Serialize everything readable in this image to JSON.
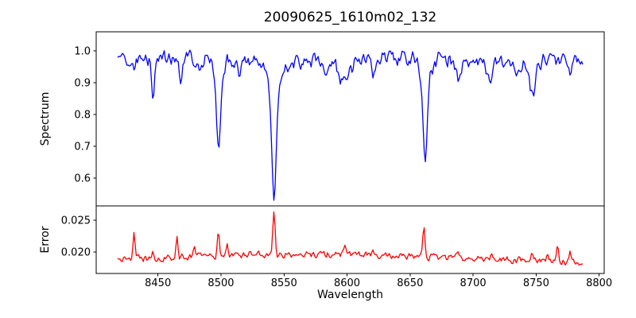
{
  "chart_data": {
    "type": "line",
    "title": "20090625_1610m02_132",
    "xlabel": "Wavelength",
    "x_range": [
      8401,
      8804
    ],
    "x_ticks": [
      8450,
      8500,
      8550,
      8600,
      8650,
      8700,
      8750,
      8800
    ],
    "x_tick_labels": [
      "8450",
      "8500",
      "8550",
      "8600",
      "8650",
      "8700",
      "8750",
      "8800"
    ],
    "data_x_start": 8418,
    "data_x_end": 8787,
    "n_points": 400,
    "noise_seed": 20090625,
    "grid": false,
    "legend": "none",
    "panels": [
      {
        "name": "spectrum",
        "ylabel": "Spectrum",
        "color": "#0000ff",
        "y_range": [
          0.5125,
          1.06
        ],
        "y_ticks": [
          1.0,
          0.9,
          0.8,
          0.7,
          0.6
        ],
        "y_tick_labels": [
          "1.0",
          "0.9",
          "0.8",
          "0.7",
          "0.6"
        ],
        "continuum": 0.972,
        "continuum_wave_amp": 0.005,
        "continuum_wave_period": 30,
        "noise_sigma": 0.016,
        "absorption_features": [
          {
            "center": 8431,
            "depth": 0.05,
            "sigma": 1.0
          },
          {
            "center": 8446,
            "depth": 0.115,
            "sigma": 1.1
          },
          {
            "center": 8468,
            "depth": 0.06,
            "sigma": 1.3
          },
          {
            "center": 8484,
            "depth": 0.04,
            "sigma": 1.2
          },
          {
            "center": 8498,
            "depth": 0.24,
            "sigma": 1.5
          },
          {
            "center": 8498,
            "depth": 0.04,
            "sigma": 4.0
          },
          {
            "center": 8514,
            "depth": 0.04,
            "sigma": 1.5
          },
          {
            "center": 8542,
            "depth": 0.38,
            "sigma": 1.8
          },
          {
            "center": 8542,
            "depth": 0.06,
            "sigma": 6.0
          },
          {
            "center": 8582,
            "depth": 0.05,
            "sigma": 1.5
          },
          {
            "center": 8598,
            "depth": 0.065,
            "sigma": 5.0
          },
          {
            "center": 8621,
            "depth": 0.04,
            "sigma": 1.5
          },
          {
            "center": 8648,
            "depth": 0.03,
            "sigma": 1.2
          },
          {
            "center": 8662,
            "depth": 0.29,
            "sigma": 1.7
          },
          {
            "center": 8662,
            "depth": 0.05,
            "sigma": 5.0
          },
          {
            "center": 8688,
            "depth": 0.06,
            "sigma": 1.8
          },
          {
            "center": 8713,
            "depth": 0.05,
            "sigma": 2.0
          },
          {
            "center": 8736,
            "depth": 0.04,
            "sigma": 2.0
          },
          {
            "center": 8747,
            "depth": 0.1,
            "sigma": 2.5
          },
          {
            "center": 8777,
            "depth": 0.04,
            "sigma": 1.5
          }
        ]
      },
      {
        "name": "error",
        "ylabel": "Error",
        "color": "#ff0000",
        "y_range": [
          0.016625,
          0.02725
        ],
        "y_ticks": [
          0.025,
          0.02
        ],
        "y_tick_labels": [
          "0.025",
          "0.020"
        ],
        "baseline": {
          "level": 0.0187,
          "bump_amp": 0.0009,
          "bump_center": 8565,
          "bump_sigma": 90,
          "tail_start": 8700,
          "tail_slope": 4e-06
        },
        "noise_sigma": 0.0004,
        "spikes": [
          {
            "center": 8431,
            "amp": 0.0043,
            "sigma": 0.8
          },
          {
            "center": 8446,
            "amp": 0.0013,
            "sigma": 0.8
          },
          {
            "center": 8465,
            "amp": 0.0034,
            "sigma": 0.8
          },
          {
            "center": 8479,
            "amp": 0.001,
            "sigma": 0.8
          },
          {
            "center": 8498,
            "amp": 0.004,
            "sigma": 0.9
          },
          {
            "center": 8505,
            "amp": 0.0014,
            "sigma": 0.8
          },
          {
            "center": 8542,
            "amp": 0.007,
            "sigma": 1.0
          },
          {
            "center": 8598,
            "amp": 0.0012,
            "sigma": 1.5
          },
          {
            "center": 8621,
            "amp": 0.0008,
            "sigma": 1.0
          },
          {
            "center": 8661,
            "amp": 0.005,
            "sigma": 0.9
          },
          {
            "center": 8688,
            "amp": 0.001,
            "sigma": 1.0
          },
          {
            "center": 8715,
            "amp": 0.0008,
            "sigma": 1.0
          },
          {
            "center": 8747,
            "amp": 0.0013,
            "sigma": 1.2
          },
          {
            "center": 8759,
            "amp": 0.001,
            "sigma": 0.8
          },
          {
            "center": 8767,
            "amp": 0.0026,
            "sigma": 0.8
          },
          {
            "center": 8777,
            "amp": 0.002,
            "sigma": 0.8
          }
        ]
      }
    ],
    "colors": {
      "spectrum_line": "#0000ff",
      "error_line": "#ff0000",
      "axes": "#000000",
      "background": "#ffffff"
    }
  }
}
